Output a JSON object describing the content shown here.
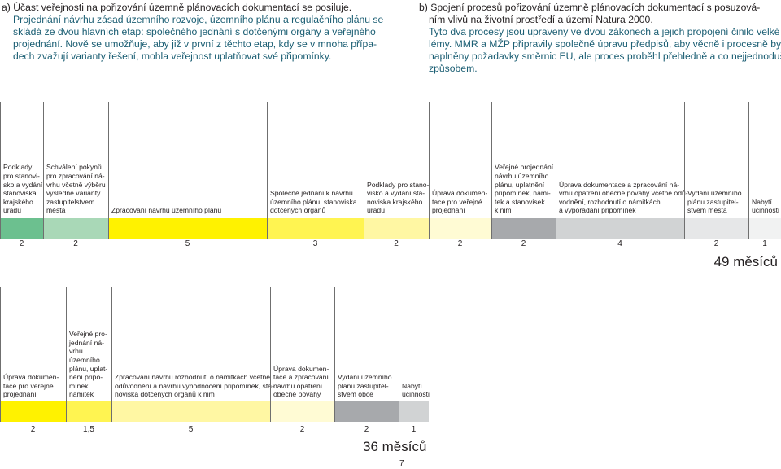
{
  "section_a": {
    "heading": "a) Účast veřejnosti na pořizování územně plánovacích dokumentací se posiluje.",
    "lines": [
      "Projednání návrhu zásad územního rozvoje, územního plánu a regulačního plánu se",
      "skládá ze dvou hlavních etap: společného jednání s dotčenými orgány a veřejného",
      "projednání. Nově se umožňuje, aby již v první z těchto etap, kdy se v mnoha přípa-",
      "dech zvažují varianty řešení, mohla veřejnost uplatňovat své připomínky."
    ]
  },
  "section_b": {
    "heading_lines": [
      "b) Spojení procesů pořizování územně plánovacích dokumentací s posuzová-",
      "ním vlivů na životní prostředí a území Natura 2000."
    ],
    "lines": [
      "Tyto dva procesy jsou upraveny ve dvou zákonech a jejich propojení činilo velké prob-",
      "lémy. MMR a MŽP připravily společně úpravu předpisů, aby věcně i procesně byly",
      "naplněny požadavky směrnic EU, ale proces proběhl přehledně a co nejjednodušším",
      "způsobem."
    ]
  },
  "timeline_old": {
    "steps": [
      {
        "label": [
          "Podklady",
          "pro stanovi-",
          "sko a vydání",
          "stanoviska",
          "krajského",
          "úřadu"
        ],
        "months": "2",
        "color": "#6cc08f"
      },
      {
        "label": [
          "Schválení pokynů",
          "pro zpracování ná-",
          "vrhu včetně výběru",
          "výsledné varianty",
          "zastupitelstvem",
          "města"
        ],
        "months": "2",
        "color": "#a9d8b7"
      },
      {
        "label": [
          "Zpracování návrhu územního plánu"
        ],
        "months": "5",
        "color": "#fff200"
      },
      {
        "label": [
          "Společné jednání k návrhu",
          "územního plánu, stanoviska",
          "dotčených orgánů"
        ],
        "months": "3",
        "color": "#fff451"
      },
      {
        "label": [
          "Podklady pro stano-",
          "visko a vydání sta-",
          "noviska krajského",
          "úřadu"
        ],
        "months": "2",
        "color": "#fff7a3"
      },
      {
        "label": [
          "Úprava dokumen-",
          "tace pro veřejné",
          "projednání"
        ],
        "months": "2",
        "color": "#fffbd4"
      },
      {
        "label": [
          "Veřejné projednání",
          "návrhu územního",
          "plánu, uplatnění",
          "připomínek, námi-",
          "tek a stanovisek",
          "k nim"
        ],
        "months": "2",
        "color": "#a7a9ac"
      },
      {
        "label": [
          "Úprava dokumentace a zpracování ná-",
          "vrhu opatření obecné povahy včetně odů-",
          "vodnění, rozhodnutí o námitkách",
          "a vypořádání připomínek"
        ],
        "months": "4",
        "color": "#d1d3d4"
      },
      {
        "label": [
          "Vydání územního",
          "plánu zastupitel-",
          "stvem města"
        ],
        "months": "2",
        "color": "#e6e7e8"
      },
      {
        "label": [
          "Nabytí",
          "účinnosti"
        ],
        "months": "1",
        "color": "#f1f2f2"
      }
    ],
    "total": "49 měsíců"
  },
  "timeline_new": {
    "steps": [
      {
        "label": [
          "Úprava dokumen-",
          "tace pro veřejné",
          "projednání"
        ],
        "months": "2",
        "color": "#fff200"
      },
      {
        "label": [
          "Veřejné pro-",
          "jednání ná-",
          "vrhu",
          "územního",
          "plánu, uplat-",
          "nění připo-",
          "mínek,",
          "námitek"
        ],
        "months": "1,5",
        "color": "#fff451"
      },
      {
        "label": [
          "Zpracování návrhu rozhodnutí o námitkách včetně",
          "odůvodnění a návrhu vyhodnocení připomínek, sta-",
          "noviska dotčených orgánů k nim"
        ],
        "months": "5",
        "color": "#fff7a3"
      },
      {
        "label": [
          "Úprava dokumen-",
          "tace a zpracování",
          "návrhu opatření",
          "obecné povahy"
        ],
        "months": "2",
        "color": "#fffbd4"
      },
      {
        "label": [
          "Vydání územního",
          "plánu zastupitel-",
          "stvem obce"
        ],
        "months": "2",
        "color": "#a7a9ac"
      },
      {
        "label": [
          "Nabytí",
          "účinnosti"
        ],
        "months": "1",
        "color": "#d1d3d4"
      }
    ],
    "total": "36 měsíců"
  },
  "page_number": "7"
}
